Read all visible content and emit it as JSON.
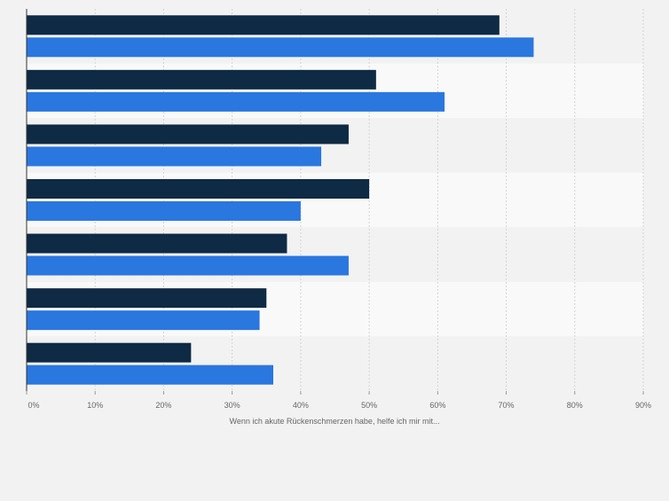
{
  "chart_data": {
    "type": "bar",
    "orientation": "horizontal",
    "categories": [
      "",
      "",
      "",
      "",
      "",
      "",
      ""
    ],
    "series": [
      {
        "color": "#0f2a44",
        "values": [
          69,
          51,
          47,
          50,
          38,
          35,
          24
        ]
      },
      {
        "color": "#2a77e0",
        "values": [
          74,
          61,
          43,
          40,
          47,
          34,
          36
        ]
      }
    ],
    "xlabel": "Wenn ich akute Rückenschmerzen habe, helfe ich mir mit...",
    "ylabel": "",
    "xlim": [
      0,
      90
    ],
    "xticks": [
      "0%",
      "10%",
      "20%",
      "30%",
      "40%",
      "50%",
      "60%",
      "70%",
      "80%",
      "90%"
    ],
    "grid": true,
    "legend": "none"
  }
}
